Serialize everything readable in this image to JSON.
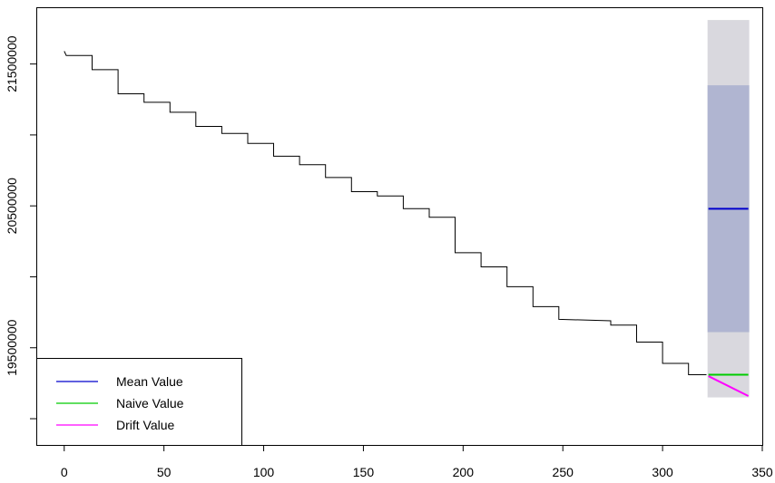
{
  "chart_data": {
    "type": "line",
    "title": "",
    "xlabel": "",
    "ylabel": "",
    "xlim": [
      -14,
      350
    ],
    "ylim": [
      18815000,
      21900000
    ],
    "x_ticks": [
      0,
      50,
      100,
      150,
      200,
      250,
      300,
      350
    ],
    "x_tick_labels": [
      "0",
      "50",
      "100",
      "150",
      "200",
      "250",
      "300",
      "350"
    ],
    "y_ticks": [
      19000000,
      19500000,
      20000000,
      20500000,
      21000000,
      21500000
    ],
    "y_tick_labels": [
      "",
      "19500000",
      "",
      "20500000",
      "",
      "21500000"
    ],
    "grid": false,
    "legend_position": "bottom-left",
    "colors": {
      "observed": "#000000",
      "mean": "#0000cc",
      "naive": "#00cc00",
      "drift": "#ff00ff",
      "band80": "#b0b5d1",
      "band95": "#d9d8de"
    },
    "series": [
      {
        "name": "",
        "color": "#000000",
        "points": [
          [
            0,
            21590000
          ],
          [
            1,
            21560000
          ],
          [
            14,
            21560000
          ],
          [
            14,
            21460000
          ],
          [
            27,
            21460000
          ],
          [
            27,
            21290000
          ],
          [
            40,
            21290000
          ],
          [
            40,
            21230000
          ],
          [
            53,
            21230000
          ],
          [
            53,
            21160000
          ],
          [
            66,
            21160000
          ],
          [
            66,
            21060000
          ],
          [
            79,
            21060000
          ],
          [
            79,
            21010000
          ],
          [
            92,
            21010000
          ],
          [
            92,
            20940000
          ],
          [
            105,
            20940000
          ],
          [
            105,
            20850000
          ],
          [
            118,
            20850000
          ],
          [
            118,
            20790000
          ],
          [
            131,
            20790000
          ],
          [
            131,
            20700000
          ],
          [
            144,
            20700000
          ],
          [
            144,
            20600000
          ],
          [
            157,
            20600000
          ],
          [
            157,
            20570000
          ],
          [
            170,
            20570000
          ],
          [
            170,
            20480000
          ],
          [
            183,
            20480000
          ],
          [
            183,
            20420000
          ],
          [
            196,
            20420000
          ],
          [
            196,
            20170000
          ],
          [
            209,
            20170000
          ],
          [
            209,
            20070000
          ],
          [
            222,
            20070000
          ],
          [
            222,
            19930000
          ],
          [
            235,
            19930000
          ],
          [
            235,
            19790000
          ],
          [
            248,
            19790000
          ],
          [
            248,
            19700000
          ],
          [
            274,
            19690000
          ],
          [
            274,
            19660000
          ],
          [
            287,
            19660000
          ],
          [
            287,
            19540000
          ],
          [
            300,
            19540000
          ],
          [
            300,
            19390000
          ],
          [
            313,
            19390000
          ],
          [
            313,
            19310000
          ],
          [
            322,
            19310000
          ]
        ]
      },
      {
        "name": "Mean Value",
        "color": "#0000cc",
        "x": [
          323,
          343
        ],
        "values": [
          20480000,
          20480000
        ],
        "pi80": [
          19610000,
          21350000
        ],
        "pi95": [
          19150000,
          21810000
        ]
      },
      {
        "name": "Naive Value",
        "color": "#00cc00",
        "x": [
          323,
          343
        ],
        "values": [
          19310000,
          19310000
        ]
      },
      {
        "name": "Drift Value",
        "color": "#ff00ff",
        "x": [
          323,
          343
        ],
        "values": [
          19300000,
          19160000
        ]
      }
    ],
    "legend": [
      "Mean Value",
      "Naive Value",
      "Drift Value"
    ]
  }
}
